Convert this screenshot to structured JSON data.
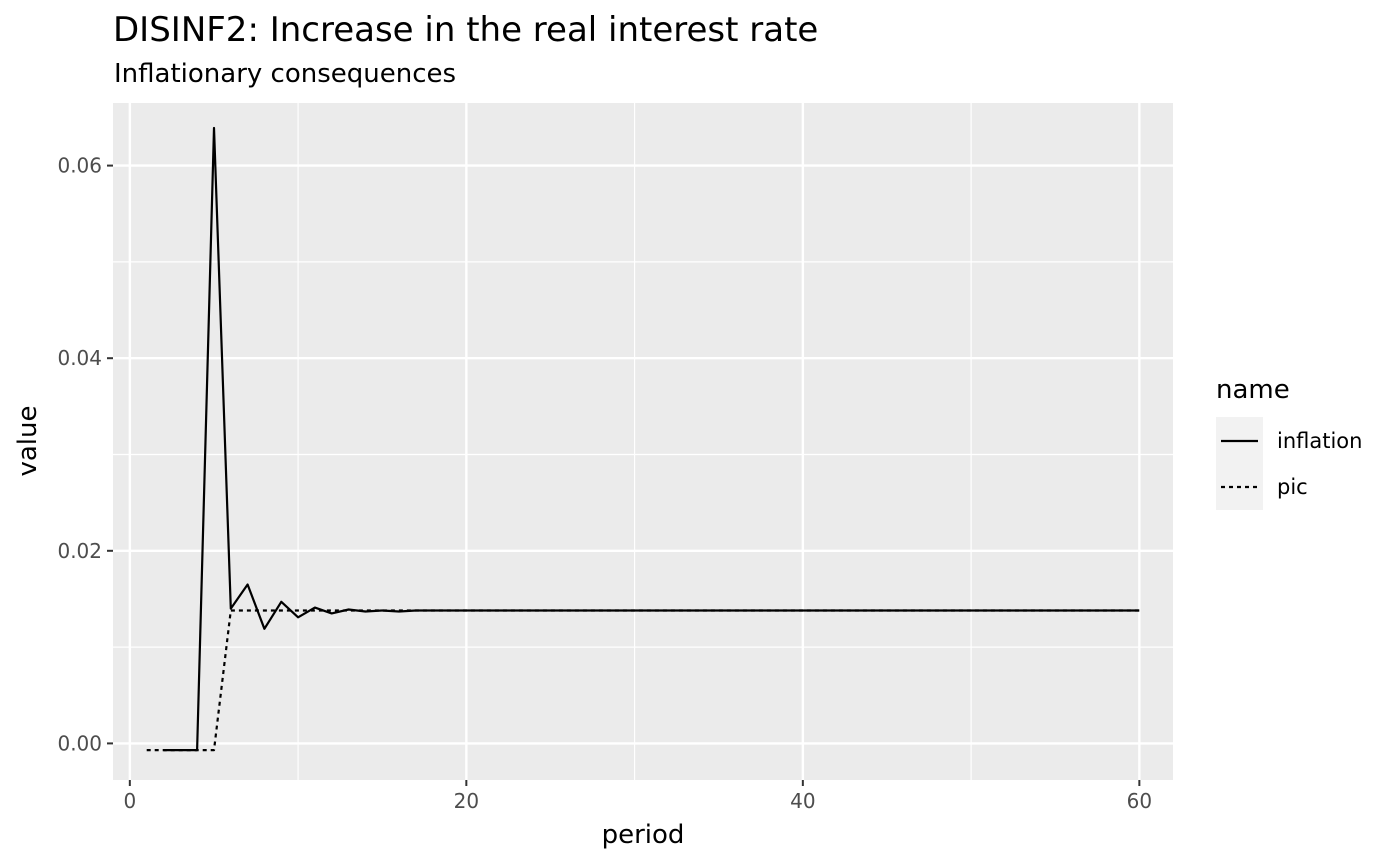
{
  "chart_data": {
    "type": "line",
    "title": "DISINF2: Increase in the real interest rate",
    "subtitle": "Inflationary consequences",
    "xlabel": "period",
    "ylabel": "value",
    "xlim": [
      -1,
      62
    ],
    "ylim": [
      -0.0038,
      0.0665
    ],
    "x_ticks": [
      0,
      20,
      40,
      60
    ],
    "x_tick_labels": [
      "0",
      "20",
      "40",
      "60"
    ],
    "y_ticks": [
      0.0,
      0.02,
      0.04,
      0.06
    ],
    "y_tick_labels": [
      "0.00",
      "0.02",
      "0.04",
      "0.06"
    ],
    "grid": true,
    "legend": {
      "title": "name",
      "position": "right",
      "entries": [
        {
          "label": "inflation",
          "linetype": "solid"
        },
        {
          "label": "pic",
          "linetype": "dotted"
        }
      ]
    },
    "series": [
      {
        "name": "inflation",
        "linetype": "solid",
        "color": "#000000",
        "x": [
          2,
          3,
          4,
          5,
          6,
          7,
          8,
          9,
          10,
          11,
          12,
          13,
          14,
          15,
          16,
          17,
          18,
          19,
          20,
          21,
          22,
          23,
          24,
          25,
          26,
          27,
          28,
          29,
          30,
          31,
          32,
          33,
          34,
          35,
          36,
          37,
          38,
          39,
          40,
          41,
          42,
          43,
          44,
          45,
          46,
          47,
          48,
          49,
          50,
          51,
          52,
          53,
          54,
          55,
          56,
          57,
          58,
          59,
          60
        ],
        "y": [
          -0.0007,
          -0.0007,
          -0.0007,
          0.0639,
          0.014,
          0.0165,
          0.0119,
          0.0147,
          0.0131,
          0.0141,
          0.0135,
          0.0139,
          0.0137,
          0.0138,
          0.0137,
          0.0138,
          0.0138,
          0.0138,
          0.0138,
          0.0138,
          0.0138,
          0.0138,
          0.0138,
          0.0138,
          0.0138,
          0.0138,
          0.0138,
          0.0138,
          0.0138,
          0.0138,
          0.0138,
          0.0138,
          0.0138,
          0.0138,
          0.0138,
          0.0138,
          0.0138,
          0.0138,
          0.0138,
          0.0138,
          0.0138,
          0.0138,
          0.0138,
          0.0138,
          0.0138,
          0.0138,
          0.0138,
          0.0138,
          0.0138,
          0.0138,
          0.0138,
          0.0138,
          0.0138,
          0.0138,
          0.0138,
          0.0138,
          0.0138,
          0.0138,
          0.0138
        ]
      },
      {
        "name": "pic",
        "linetype": "dotted",
        "color": "#000000",
        "x": [
          1,
          2,
          3,
          4,
          5,
          6,
          7,
          8,
          9,
          10,
          11,
          12,
          13,
          14,
          15,
          16,
          17,
          18,
          19,
          20,
          21,
          22,
          23,
          24,
          25,
          26,
          27,
          28,
          29,
          30,
          31,
          32,
          33,
          34,
          35,
          36,
          37,
          38,
          39,
          40,
          41,
          42,
          43,
          44,
          45,
          46,
          47,
          48,
          49,
          50,
          51,
          52,
          53,
          54,
          55,
          56,
          57,
          58,
          59,
          60
        ],
        "y": [
          -0.0007,
          -0.0007,
          -0.0007,
          -0.0007,
          -0.0007,
          0.0138,
          0.0138,
          0.0138,
          0.0138,
          0.0138,
          0.0138,
          0.0138,
          0.0138,
          0.0138,
          0.0138,
          0.0138,
          0.0138,
          0.0138,
          0.0138,
          0.0138,
          0.0138,
          0.0138,
          0.0138,
          0.0138,
          0.0138,
          0.0138,
          0.0138,
          0.0138,
          0.0138,
          0.0138,
          0.0138,
          0.0138,
          0.0138,
          0.0138,
          0.0138,
          0.0138,
          0.0138,
          0.0138,
          0.0138,
          0.0138,
          0.0138,
          0.0138,
          0.0138,
          0.0138,
          0.0138,
          0.0138,
          0.0138,
          0.0138,
          0.0138,
          0.0138,
          0.0138,
          0.0138,
          0.0138,
          0.0138,
          0.0138,
          0.0138,
          0.0138,
          0.0138,
          0.0138,
          0.0138
        ]
      }
    ]
  }
}
